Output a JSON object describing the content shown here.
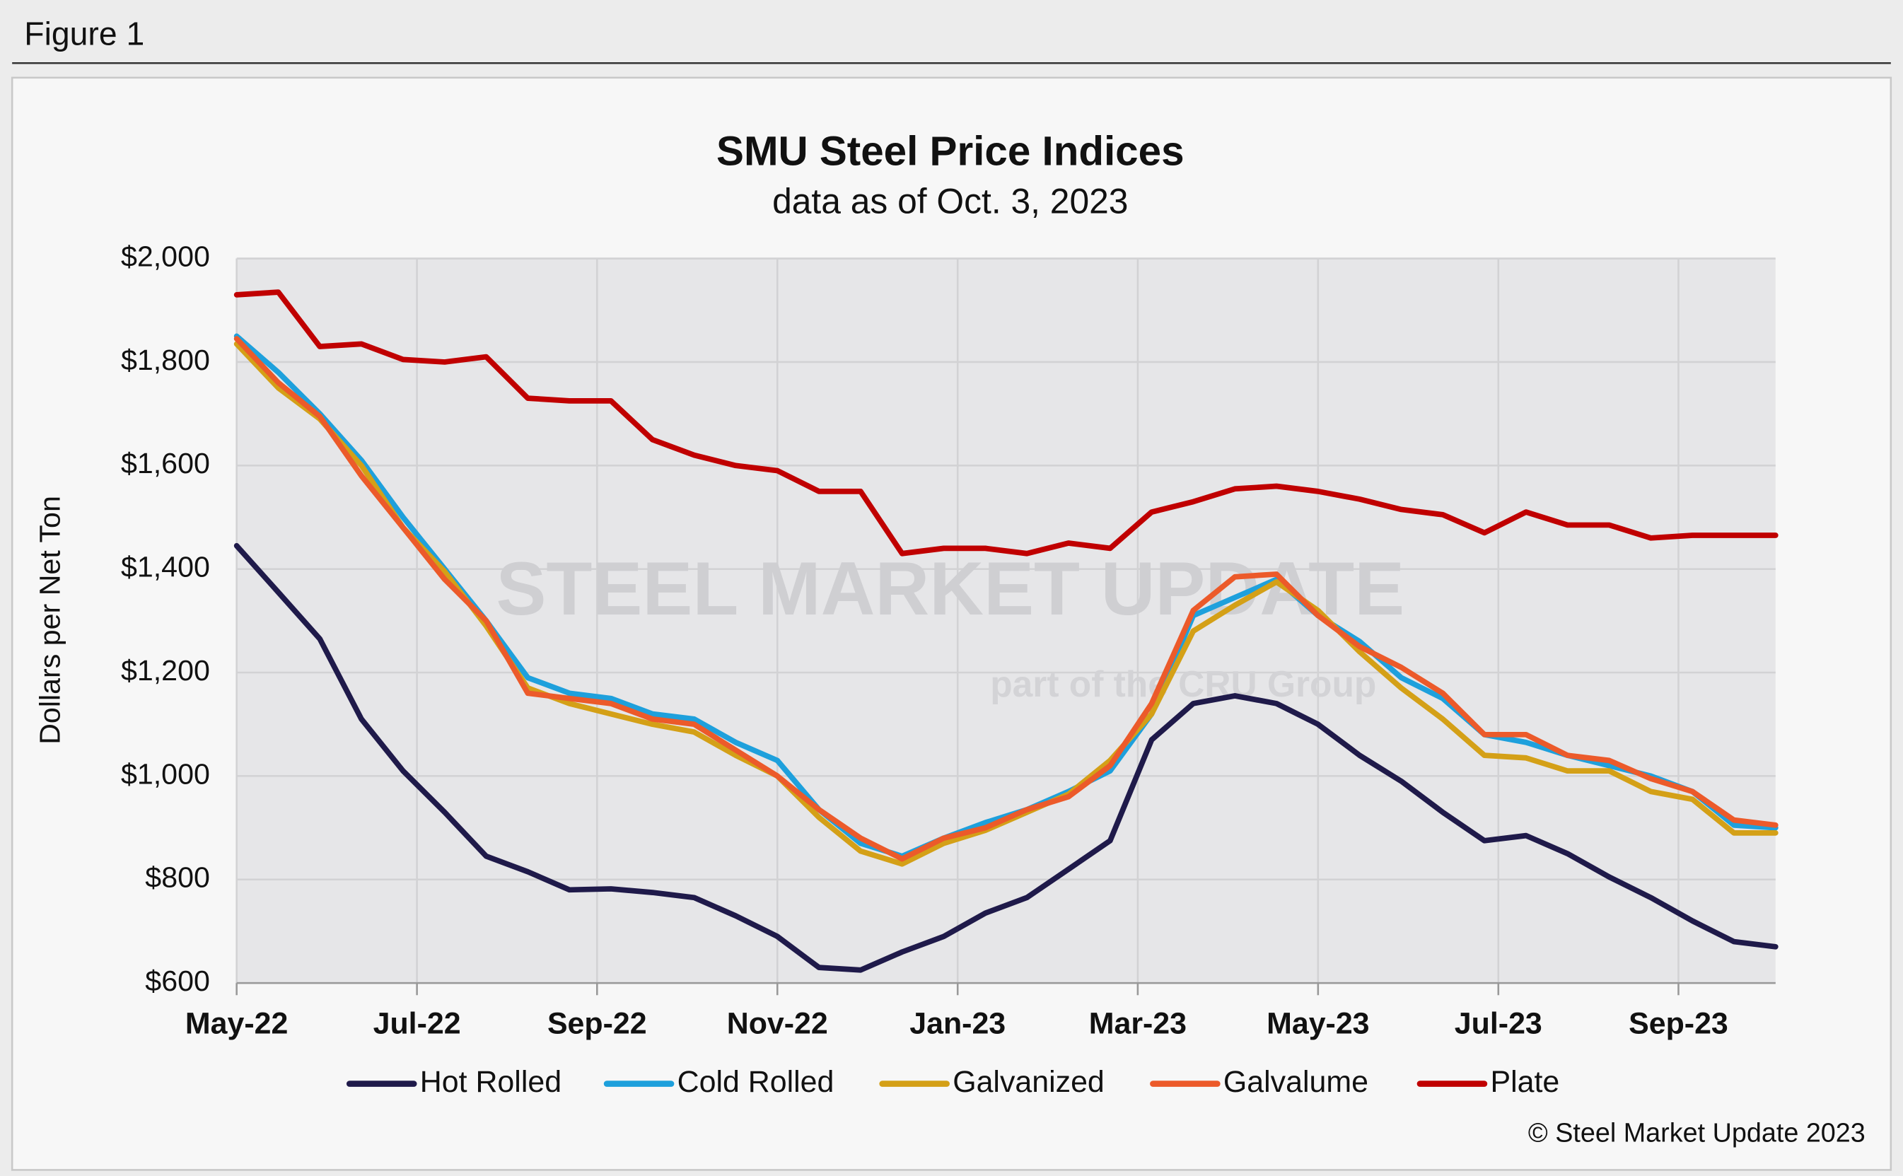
{
  "figure_label": "Figure 1",
  "copyright": "© Steel Market Update 2023",
  "watermark": "STEEL MARKET UPDATE",
  "watermark_sub": "part of the CRU Group",
  "chart_data": {
    "type": "line",
    "title": "SMU Steel Price Indices",
    "subtitle": "data as of Oct. 3, 2023",
    "y_label": "Dollars per Net Ton",
    "x": [
      0,
      2,
      4,
      6,
      8,
      10,
      12,
      14,
      16,
      18,
      20,
      22,
      24,
      26,
      28,
      30,
      32,
      34,
      36,
      38,
      40,
      42,
      44,
      46,
      48,
      50,
      52,
      54,
      56,
      58,
      60,
      62,
      64,
      66,
      68,
      70,
      72,
      74
    ],
    "xlim": [
      0,
      74
    ],
    "xticks": [
      {
        "value": 0,
        "label": "May-22"
      },
      {
        "value": 8.67,
        "label": "Jul-22"
      },
      {
        "value": 17.33,
        "label": "Sep-22"
      },
      {
        "value": 26,
        "label": "Nov-22"
      },
      {
        "value": 34.67,
        "label": "Jan-23"
      },
      {
        "value": 43.33,
        "label": "Mar-23"
      },
      {
        "value": 52,
        "label": "May-23"
      },
      {
        "value": 60.67,
        "label": "Jul-23"
      },
      {
        "value": 69.33,
        "label": "Sep-23"
      }
    ],
    "ylim": [
      600,
      2000
    ],
    "yticks": [
      {
        "value": 600,
        "label": "$600"
      },
      {
        "value": 800,
        "label": "$800"
      },
      {
        "value": 1000,
        "label": "$1,000"
      },
      {
        "value": 1200,
        "label": "$1,200"
      },
      {
        "value": 1400,
        "label": "$1,400"
      },
      {
        "value": 1600,
        "label": "$1,600"
      },
      {
        "value": 1800,
        "label": "$1,800"
      },
      {
        "value": 2000,
        "label": "$2,000"
      }
    ],
    "grid": true,
    "legend": "bottom",
    "series": [
      {
        "name": "Hot Rolled",
        "color": "#1f1a4a",
        "values": [
          1445,
          1355,
          1265,
          1110,
          1010,
          930,
          845,
          815,
          780,
          782,
          775,
          765,
          730,
          690,
          630,
          625,
          660,
          690,
          735,
          765,
          820,
          875,
          1070,
          1140,
          1155,
          1140,
          1100,
          1040,
          990,
          930,
          875,
          885,
          850,
          805,
          765,
          720,
          680,
          670
        ]
      },
      {
        "name": "Cold Rolled",
        "color": "#1ea0dc",
        "values": [
          1850,
          1780,
          1700,
          1610,
          1500,
          1400,
          1300,
          1190,
          1160,
          1150,
          1120,
          1110,
          1065,
          1030,
          935,
          870,
          845,
          880,
          910,
          935,
          970,
          1010,
          1120,
          1310,
          1345,
          1380,
          1310,
          1260,
          1190,
          1150,
          1080,
          1065,
          1040,
          1020,
          1000,
          970,
          905,
          900
        ]
      },
      {
        "name": "Galvanized",
        "color": "#d4a017",
        "values": [
          1835,
          1750,
          1690,
          1600,
          1480,
          1395,
          1290,
          1170,
          1140,
          1120,
          1100,
          1085,
          1040,
          1000,
          920,
          855,
          830,
          870,
          895,
          930,
          965,
          1030,
          1120,
          1280,
          1330,
          1375,
          1320,
          1240,
          1170,
          1110,
          1040,
          1035,
          1010,
          1010,
          970,
          955,
          890,
          890
        ]
      },
      {
        "name": "Galvalume",
        "color": "#ec5a2a",
        "values": [
          1845,
          1760,
          1695,
          1580,
          1480,
          1380,
          1300,
          1160,
          1150,
          1140,
          1110,
          1100,
          1050,
          1000,
          935,
          880,
          840,
          880,
          900,
          935,
          960,
          1020,
          1140,
          1320,
          1385,
          1390,
          1310,
          1250,
          1210,
          1160,
          1080,
          1080,
          1040,
          1030,
          995,
          970,
          915,
          905
        ]
      },
      {
        "name": "Plate",
        "color": "#c00000",
        "values": [
          1930,
          1935,
          1830,
          1835,
          1805,
          1800,
          1810,
          1730,
          1725,
          1725,
          1650,
          1620,
          1600,
          1590,
          1550,
          1550,
          1430,
          1440,
          1440,
          1430,
          1450,
          1440,
          1510,
          1530,
          1555,
          1560,
          1550,
          1535,
          1515,
          1505,
          1470,
          1510,
          1485,
          1485,
          1460,
          1465,
          1465,
          1465
        ]
      }
    ]
  }
}
